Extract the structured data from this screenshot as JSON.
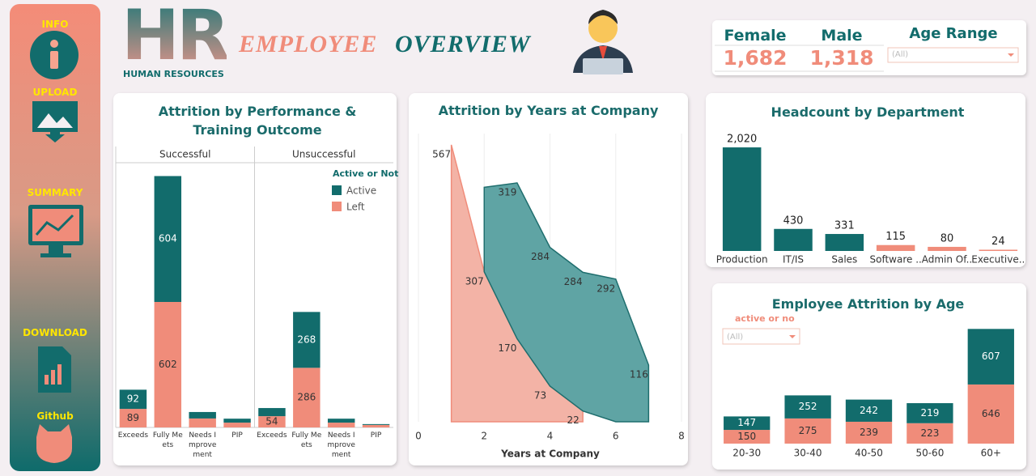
{
  "sidebar": {
    "items": [
      "INFO",
      "UPLOAD",
      "SUMMARY",
      "DOWNLOAD",
      "Github"
    ]
  },
  "header": {
    "logo": "HR",
    "logo_subtitle": "HUMAN RESOURCES",
    "title_part1": "EMPLOYEE",
    "title_part2": "OVERVIEW"
  },
  "kpis": [
    {
      "label": "Female",
      "value": "1,682"
    },
    {
      "label": "Male",
      "value": "1,318"
    }
  ],
  "filters": {
    "age_range": {
      "label": "Age Range",
      "value": "(All)"
    }
  },
  "chart_data": [
    {
      "type": "stacked_bar",
      "title": "Attrition by Performance & Training Outcome",
      "facets": [
        "Successful",
        "Unsuccessful"
      ],
      "categories": [
        "Exceeds",
        "Fully Meets",
        "Needs Improvement",
        "PIP"
      ],
      "legend_title": "Active or Not",
      "series": [
        {
          "name": "Active",
          "color": "#126c6c",
          "label_color": "#ffffff",
          "values": [
            [
              92,
              604,
              31,
              19
            ],
            [
              39,
              268,
              19,
              4
            ]
          ]
        },
        {
          "name": "Left",
          "color": "#f08c7a",
          "label_color": "#333333",
          "values": [
            [
              89,
              602,
              43,
              23
            ],
            [
              54,
              286,
              23,
              12
            ]
          ]
        }
      ],
      "ylim": [
        0,
        1270
      ]
    },
    {
      "type": "area",
      "title": "Attrition by Years at Company",
      "x_label": "Years at Company",
      "series": [
        {
          "color": "#f3b3a6",
          "stroke": "#f08c7a",
          "x": [
            1,
            2,
            3,
            4,
            5
          ],
          "values": [
            567,
            307,
            170,
            73,
            22
          ]
        },
        {
          "color": "#5fa4a4",
          "stroke": "#1f6e6e",
          "x": [
            2,
            3,
            4,
            5,
            6,
            7
          ],
          "values": [
            173,
            319,
            284,
            284,
            292,
            116
          ],
          "value_labels": [
            null,
            "319",
            "284",
            "284",
            "292",
            "116"
          ]
        }
      ],
      "xlim": [
        0,
        8
      ],
      "xticks": [
        0,
        2,
        4,
        6,
        8
      ],
      "ylim": [
        0,
        590
      ],
      "grid": true
    },
    {
      "type": "bar",
      "title": "Headcount by Department",
      "categories": [
        "Production",
        "IT/IS",
        "Sales",
        "Software ..",
        "Admin Of..",
        "Executive.."
      ],
      "values": [
        2020,
        430,
        331,
        115,
        80,
        24
      ],
      "value_labels": [
        "2,020",
        "430",
        "331",
        "115",
        "80",
        "24"
      ],
      "colors": [
        "#126c6c",
        "#126c6c",
        "#126c6c",
        "#f08c7a",
        "#f08c7a",
        "#f08c7a"
      ],
      "ylim": [
        0,
        2100
      ]
    },
    {
      "type": "stacked_bar",
      "title": "Employee Attrition by Age",
      "filter_label": "active or no",
      "filter_value": "(All)",
      "categories": [
        "20-30",
        "30-40",
        "40-50",
        "50-60",
        "60+"
      ],
      "series": [
        {
          "name": "Active",
          "color": "#126c6c",
          "label_color": "#ffffff",
          "values": [
            147,
            252,
            242,
            219,
            607
          ]
        },
        {
          "name": "Left",
          "color": "#f08c7a",
          "label_color": "#333333",
          "values": [
            150,
            275,
            239,
            223,
            646
          ]
        }
      ],
      "ylim": [
        0,
        1300
      ]
    }
  ]
}
